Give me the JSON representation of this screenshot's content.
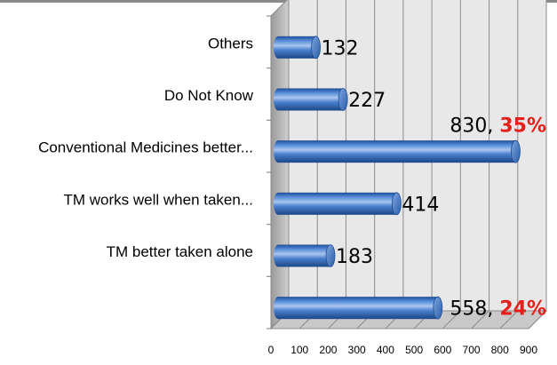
{
  "chart_data": {
    "type": "bar",
    "orientation": "horizontal",
    "categories": [
      "Others",
      "Do Not Know",
      "Conventional Medicines better...",
      "TM works well when taken...",
      "TM better taken alone",
      ""
    ],
    "values": [
      132,
      227,
      830,
      414,
      183,
      558
    ],
    "data_labels": [
      "132",
      "227",
      "830, ",
      "414",
      "183",
      "558, "
    ],
    "percent_labels": [
      "",
      "",
      "35%",
      "",
      "",
      "24%"
    ],
    "x_ticks": [
      "0",
      "100",
      "200",
      "300",
      "400",
      "500",
      "600",
      "700",
      "800",
      "900"
    ],
    "xlim": [
      0,
      900
    ],
    "grid": true,
    "bar_style": "3d-cylinder",
    "colors": {
      "bar": "#3f74c4",
      "bar_dark": "#1f4d94",
      "bar_light": "#a9c6f0",
      "percent": "#e3201b",
      "wall": "#e8e8e8",
      "floor": "#c9c9c9"
    }
  }
}
